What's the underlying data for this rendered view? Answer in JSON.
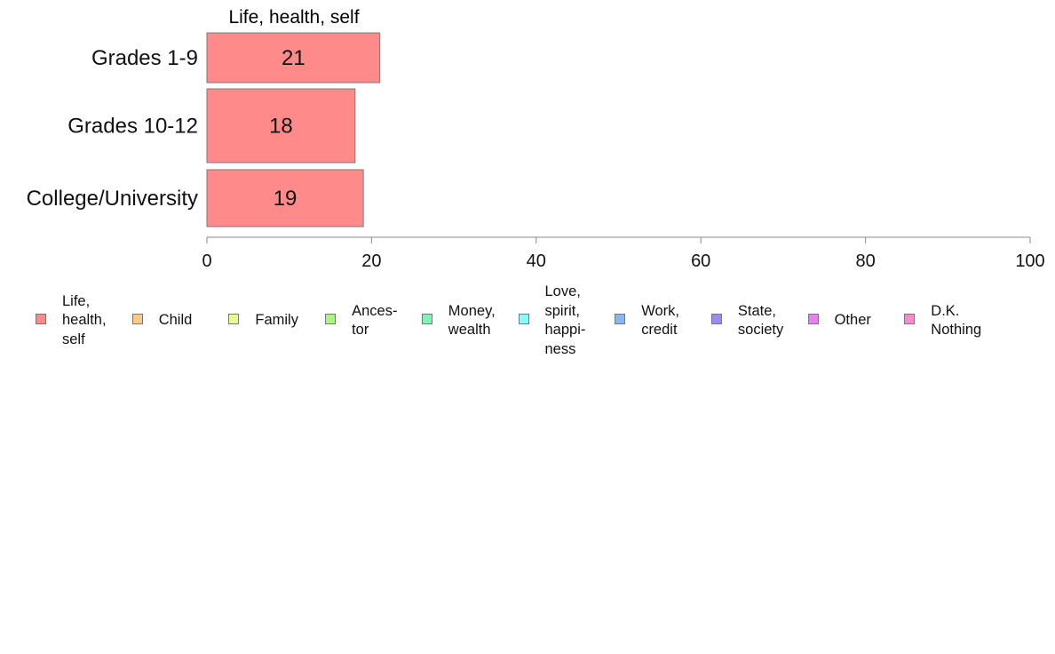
{
  "chart_data": {
    "type": "bar",
    "orientation": "horizontal",
    "panel_title": "Life, health, self",
    "categories": [
      "Grades 1-9",
      "Grades 10-12",
      "College/University"
    ],
    "series": [
      {
        "name": "Life, health, self",
        "values": [
          21,
          18,
          19
        ],
        "color": "#ff8a8a"
      }
    ],
    "xlim": [
      0,
      100
    ],
    "x_ticks": [
      0,
      20,
      40,
      60,
      80,
      100
    ],
    "grid": false,
    "legend_position": "bottom",
    "legend": [
      {
        "label": "Life,\nhealth,\nself",
        "color": "#ff8a8a"
      },
      {
        "label": "Child",
        "color": "#ffc987"
      },
      {
        "label": "Family",
        "color": "#eaff87"
      },
      {
        "label": "Ances-\ntor",
        "color": "#a8f77f"
      },
      {
        "label": "Money,\nwealth",
        "color": "#7ff5b5"
      },
      {
        "label": "Love,\nspirit,\nhappi-\nness",
        "color": "#86ffff"
      },
      {
        "label": "Work,\ncredit",
        "color": "#85b6f7"
      },
      {
        "label": "State,\nsociety",
        "color": "#9a8cf5"
      },
      {
        "label": "Other",
        "color": "#ea7ef5"
      },
      {
        "label": "D.K.\nNothing",
        "color": "#fb8ad1"
      }
    ]
  }
}
